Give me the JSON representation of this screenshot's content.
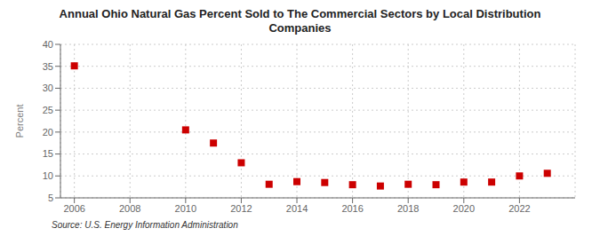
{
  "chart_data": {
    "type": "scatter",
    "title": "Annual Ohio Natural Gas Percent Sold to The Commercial Sectors by Local Distribution\nCompanies",
    "ylabel": "Percent",
    "annotations": [
      "Source: U.S. Energy Information Administration"
    ],
    "x": [
      2006,
      2010,
      2011,
      2012,
      2013,
      2014,
      2015,
      2016,
      2017,
      2018,
      2019,
      2020,
      2021,
      2022,
      2023
    ],
    "values": [
      35.1,
      20.5,
      17.5,
      13.0,
      8.1,
      8.7,
      8.5,
      8.0,
      7.7,
      8.1,
      8.0,
      8.6,
      8.6,
      10.0,
      10.6
    ],
    "color": "#cc0000",
    "marker": "square",
    "xlim": [
      2005.5,
      2024.0
    ],
    "ylim": [
      5,
      40
    ],
    "xticks": [
      2006,
      2008,
      2010,
      2012,
      2014,
      2016,
      2018,
      2020,
      2022
    ],
    "yticks": [
      5,
      10,
      15,
      20,
      25,
      30,
      35,
      40
    ],
    "grid": true
  }
}
